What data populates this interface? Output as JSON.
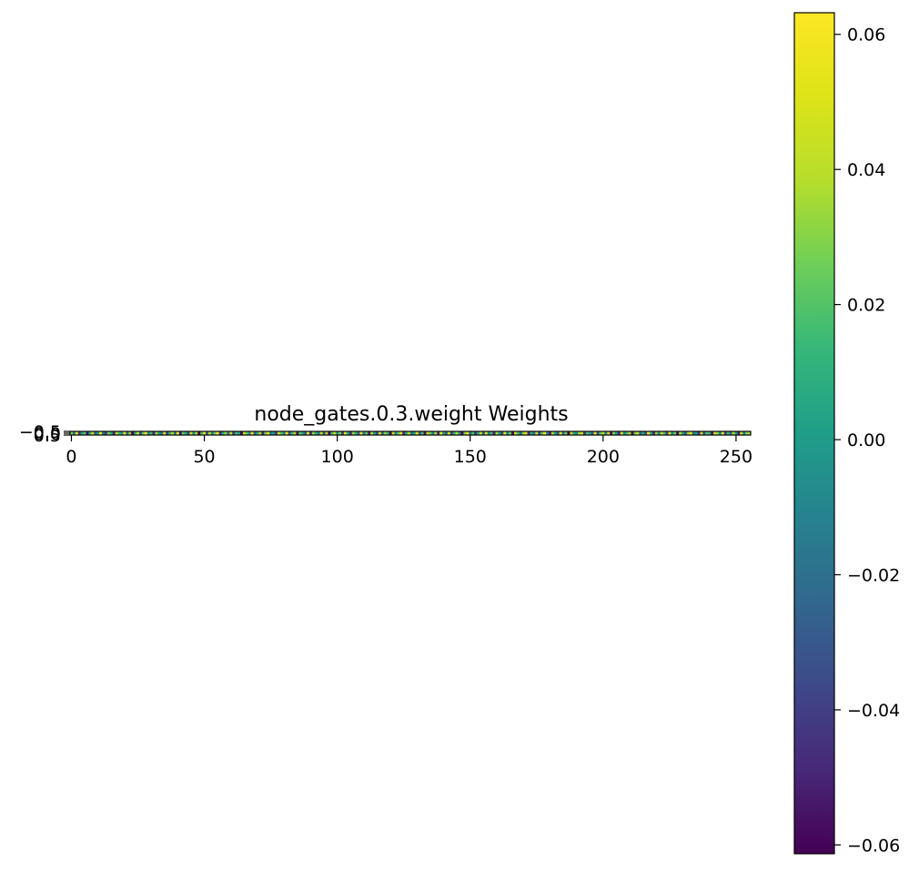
{
  "chart_data": {
    "type": "heatmap",
    "title": "node_gates.0.3.weight Weights",
    "xlabel": "",
    "ylabel": "",
    "rows": 1,
    "cols": 256,
    "xlim": [
      -0.5,
      255.5
    ],
    "ylim": [
      0.5,
      -0.5
    ],
    "x_ticks": [
      0,
      50,
      100,
      150,
      200,
      250
    ],
    "x_tick_labels": [
      "0",
      "50",
      "100",
      "150",
      "200",
      "250"
    ],
    "y_ticks": [
      -0.5,
      0.0,
      0.5
    ],
    "y_tick_labels": [
      "−0.5",
      "0.0",
      "0.5"
    ],
    "colormap": "viridis",
    "colorbar": {
      "vmin": -0.0613,
      "vmax": 0.0632,
      "ticks": [
        -0.06,
        -0.04,
        -0.02,
        0.0,
        0.02,
        0.04,
        0.06
      ],
      "tick_labels": [
        "−0.06",
        "−0.04",
        "−0.02",
        "0.00",
        "0.02",
        "0.04",
        "0.06"
      ]
    },
    "grid": false,
    "values": [
      [
        0.031,
        -0.012,
        0.054,
        -0.041,
        0.007,
        0.022,
        -0.055,
        0.013,
        0.046,
        -0.027,
        0.002,
        0.061,
        -0.018,
        -0.036,
        0.029,
        0.009,
        -0.049,
        0.038,
        0.015,
        -0.004,
        0.057,
        -0.022,
        0.033,
        -0.059,
        0.011,
        0.044,
        -0.031,
        0.026,
        0.063,
        -0.009,
        0.018,
        -0.047,
        0.035,
        0.001,
        -0.024,
        0.052,
        -0.038,
        0.014,
        0.041,
        -0.015,
        0.058,
        -0.052,
        0.024,
        0.006,
        -0.033,
        0.049,
        -0.003,
        0.037,
        -0.061,
        0.019,
        0.055,
        -0.028,
        0.042,
        -0.011,
        0.027,
        0.062,
        -0.044,
        0.008,
        0.034,
        -0.019,
        0.051,
        -0.035,
        0.016,
        0.004,
        -0.057,
        0.045,
        0.023,
        -0.006,
        0.059,
        -0.025,
        0.012,
        0.039,
        -0.048,
        0.028,
        0.053,
        -0.014,
        0.003,
        -0.039,
        0.047,
        0.021,
        -0.008,
        0.061,
        -0.032,
        0.017,
        0.036,
        -0.053,
        0.025,
        0.005,
        -0.021,
        0.056,
        -0.043,
        0.032,
        0.01,
        -0.016,
        0.048,
        -0.029,
        0.039,
        -0.058,
        0.02,
        0.043,
        -0.005,
        0.029,
        -0.037,
        0.054,
        0.008,
        -0.046,
        0.034,
        0.014,
        -0.026,
        0.06,
        -0.013,
        0.022,
        -0.051,
        0.041,
        0.003,
        -0.034,
        0.05,
        -0.02,
        0.031,
        0.015,
        -0.06,
        0.046,
        -0.007,
        0.025,
        0.058,
        -0.042,
        0.011,
        0.037,
        -0.017,
        0.004,
        0.052,
        -0.03,
        0.019,
        -0.054,
        0.044,
        0.027,
        -0.01,
        0.035,
        -0.045,
        0.062,
        0.006,
        -0.023,
        0.049,
        -0.036,
        0.013,
        0.04,
        -0.003,
        -0.056,
        0.03,
        0.057,
        -0.019,
        0.021,
        -0.04,
        0.009,
        0.045,
        -0.027,
        0.053,
        -0.012,
        0.018,
        -0.048,
        0.036,
        0.002,
        -0.033,
        0.059,
        -0.008,
        0.026,
        -0.059,
        0.047,
        0.016,
        -0.024,
        0.033,
        0.051,
        -0.045,
        0.01,
        -0.015,
        0.042,
        -0.037,
        0.024,
        0.061,
        -0.002,
        -0.05,
        0.038,
        0.007,
        -0.029,
        0.055,
        -0.018,
        0.028,
        -0.062,
        0.043,
        0.012,
        -0.009,
        0.034,
        0.05,
        -0.041,
        0.019,
        0.005,
        -0.025,
        0.058,
        -0.035,
        0.023,
        0.04,
        -0.013,
        0.047,
        -0.052,
        0.03,
        0.001,
        -0.044,
        0.056,
        -0.006,
        0.017,
        0.037,
        -0.058,
        0.026,
        0.048,
        -0.021,
        0.009,
        -0.031,
        0.062,
        0.014,
        -0.047,
        0.032,
        -0.011,
        0.044,
        0.02,
        -0.039,
        0.054,
        -0.004,
        0.027,
        -0.055,
        0.041,
        0.008,
        -0.026,
        0.035,
        0.057,
        -0.016,
        0.003,
        -0.043,
        0.049,
        -0.032,
        0.022,
        0.011,
        -0.053,
        0.046,
        0.031,
        -0.007,
        0.059,
        -0.038,
        0.016,
        -0.02,
        0.039,
        0.005,
        -0.049,
        0.052,
        -0.01,
        0.028,
        0.035
      ]
    ]
  }
}
